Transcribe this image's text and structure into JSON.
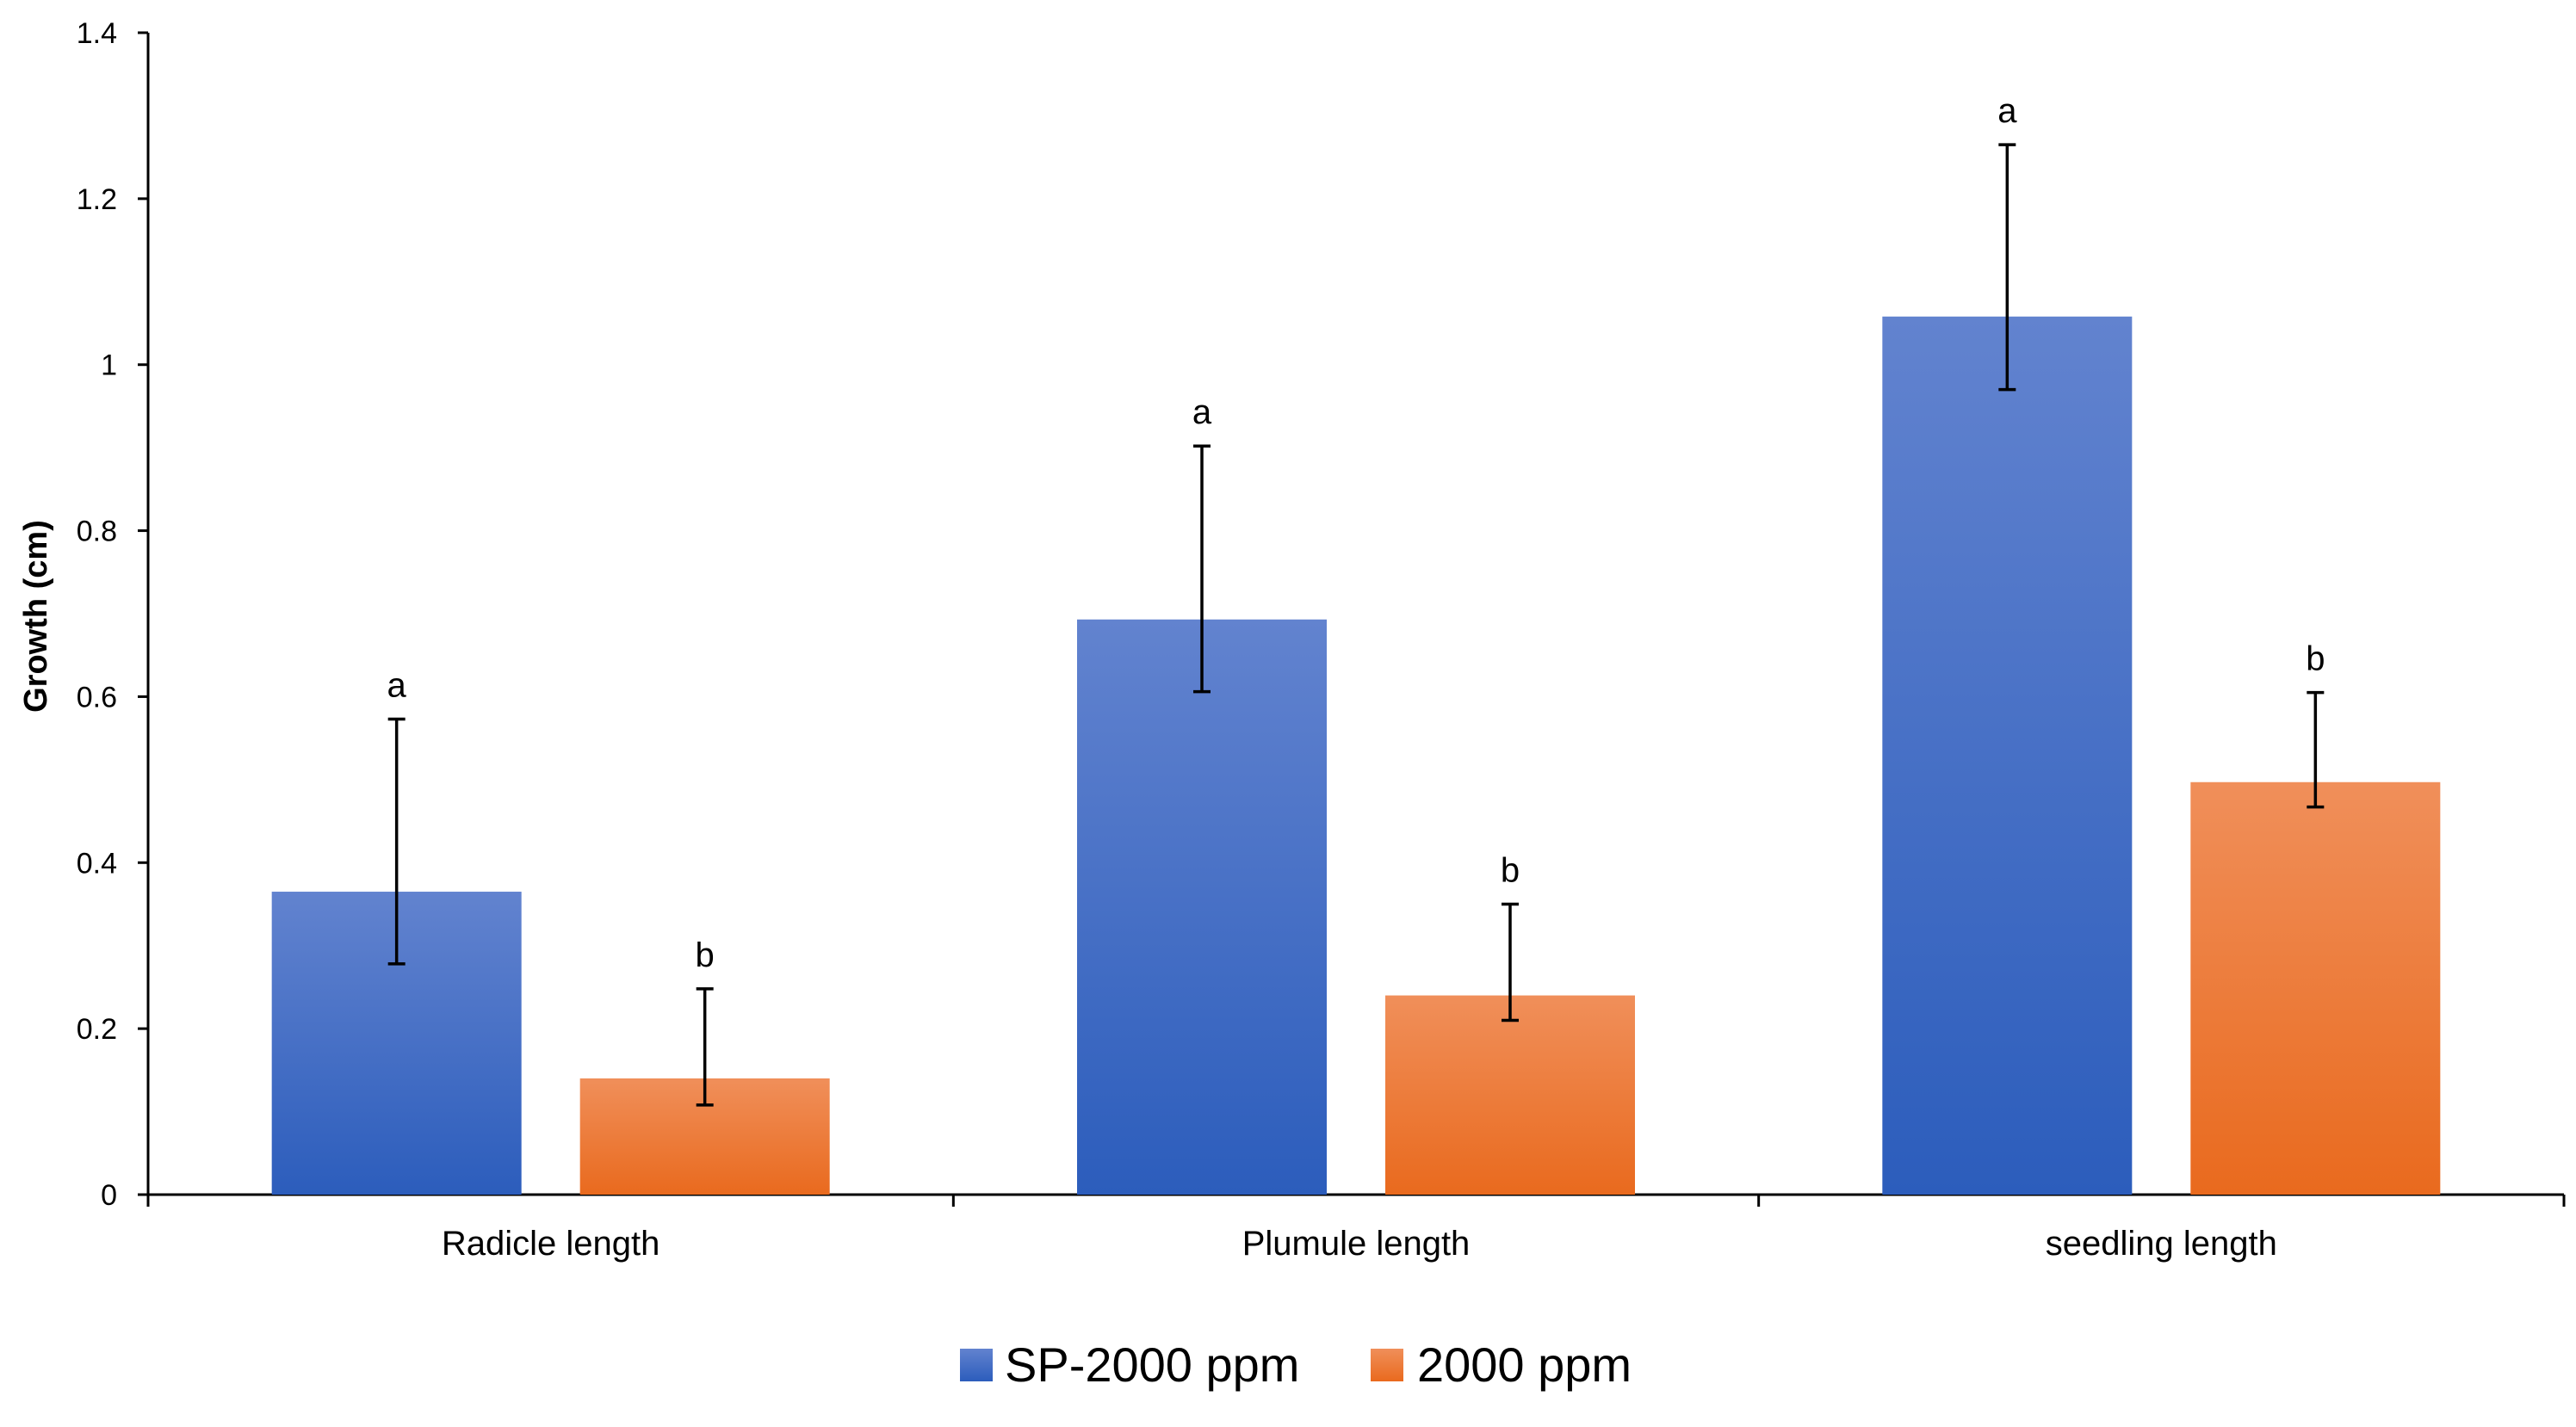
{
  "chart_data": {
    "type": "bar",
    "title": "",
    "xlabel": "",
    "ylabel": "Growth (cm)",
    "ylim": [
      0,
      1.4
    ],
    "yticks": [
      0,
      0.2,
      0.4,
      0.6,
      0.8,
      1,
      1.2,
      1.4
    ],
    "ytick_labels": [
      "0",
      "0.2",
      "0.4",
      "0.6",
      "0.8",
      "1",
      "1.2",
      "1.4"
    ],
    "categories": [
      "Radicle length",
      "Plumule length",
      "seedling length"
    ],
    "series": [
      {
        "name": "SP-2000 ppm",
        "color_top": "#6283CF",
        "color_bottom": "#2C5DBC",
        "values": [
          0.365,
          0.693,
          1.058
        ],
        "err_low": [
          0.278,
          0.606,
          0.97
        ],
        "err_high": [
          0.573,
          0.902,
          1.265
        ],
        "sig": [
          "a",
          "a",
          "a"
        ]
      },
      {
        "name": "2000 ppm",
        "color_top": "#F08F5A",
        "color_bottom": "#E96A1E",
        "values": [
          0.14,
          0.24,
          0.497
        ],
        "err_low": [
          0.108,
          0.21,
          0.467
        ],
        "err_high": [
          0.248,
          0.35,
          0.605
        ],
        "sig": [
          "b",
          "b",
          "b"
        ]
      }
    ],
    "legend_position": "bottom-center",
    "grid": false
  }
}
